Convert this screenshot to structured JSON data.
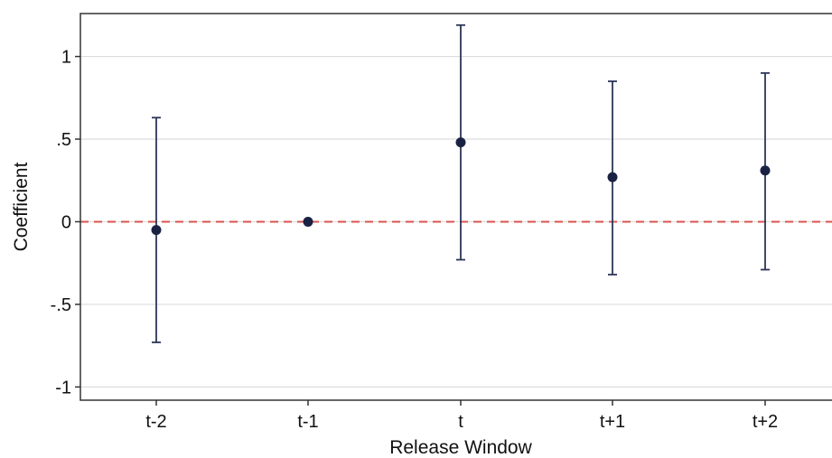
{
  "chart_data": {
    "type": "scatter",
    "xlabel": "Release Window",
    "ylabel": "Coefficient",
    "categories": [
      "t-2",
      "t-1",
      "t",
      "t+1",
      "t+2"
    ],
    "series": [
      {
        "values": [
          -0.05,
          0.0,
          0.48,
          0.27,
          0.31
        ],
        "ci_lower": [
          -0.73,
          0.0,
          -0.23,
          -0.32,
          -0.29
        ],
        "ci_upper": [
          0.63,
          0.0,
          1.19,
          0.85,
          0.9
        ]
      }
    ],
    "yticks": [
      {
        "value": 1,
        "label": "1"
      },
      {
        "value": 0.5,
        "label": ".5"
      },
      {
        "value": 0,
        "label": "0"
      },
      {
        "value": -0.5,
        "label": "-.5"
      },
      {
        "value": -1,
        "label": "-1"
      }
    ],
    "ylim": [
      -1.08,
      1.26
    ],
    "grid": true,
    "reference_line": {
      "y": 0,
      "style": "dashed",
      "color": "#d9534f"
    },
    "colors": {
      "marker": "#1a2244",
      "errorbar": "#2b3558",
      "grid": "#dcdcdc",
      "frame": "#333333"
    }
  }
}
